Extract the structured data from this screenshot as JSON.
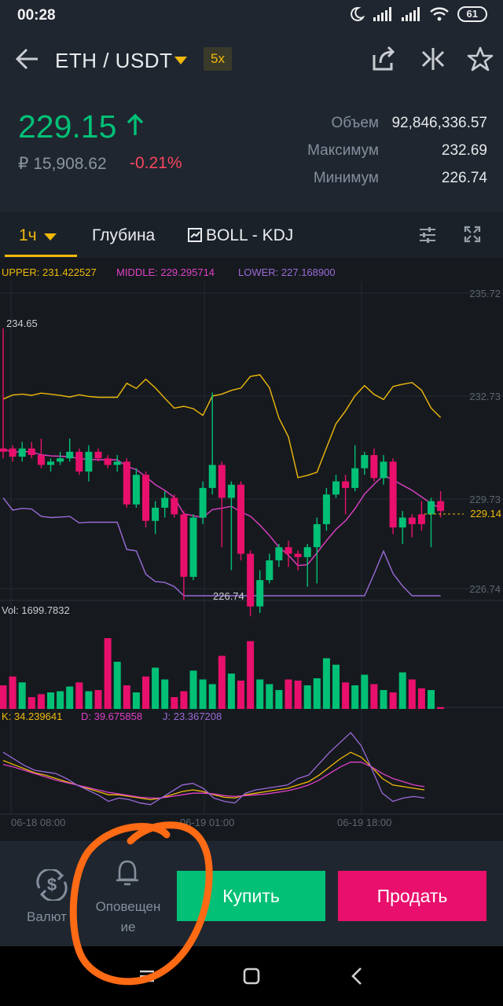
{
  "status": {
    "time": "00:28",
    "battery": "61"
  },
  "header": {
    "pair": "ETH / USDT",
    "leverage": "5x"
  },
  "ticker": {
    "price": "229.15",
    "fiat": "₽ 15,908.62",
    "change": "-0.21%",
    "stats": [
      {
        "label": "Объем",
        "value": "92,846,336.57"
      },
      {
        "label": "Максимум",
        "value": "232.69"
      },
      {
        "label": "Минимум",
        "value": "226.74"
      }
    ]
  },
  "toolbar": {
    "interval": "1ч",
    "depth": "Глубина",
    "indicators": "BOLL - KDJ"
  },
  "chart_data": {
    "type": "candlestick",
    "boll": {
      "upper": "UPPER: 231.422527",
      "middle": "MIDDLE: 229.295714",
      "lower": "LOWER: 227.168900"
    },
    "price_axis": [
      "235.72",
      "232.73",
      "229.73",
      "226.74"
    ],
    "current_price": "229.14",
    "high_label": "234.65",
    "low_label": "226.74",
    "volume_label": "Vol: 1699.7832",
    "kdj": {
      "k": "K: 34.239641",
      "d": "D: 39.675858",
      "j": "J: 23.367208"
    },
    "time_axis": [
      "06-18 08:00",
      "06-19 01:00",
      "06-19 18:00"
    ],
    "colors": {
      "up": "#02c076",
      "down": "#e8106c",
      "upper": "#f0b90b",
      "middle": "#e040c8",
      "lower": "#9b6ad8"
    },
    "candles": [
      [
        230.9,
        231.0,
        230.7,
        234.65,
        0
      ],
      [
        231.0,
        230.75,
        230.6,
        231.1,
        0
      ],
      [
        230.75,
        231.0,
        230.6,
        231.2,
        1
      ],
      [
        231.0,
        230.8,
        230.7,
        231.2,
        0
      ],
      [
        230.8,
        230.5,
        230.4,
        231.3,
        0
      ],
      [
        230.5,
        230.6,
        230.3,
        230.7,
        1
      ],
      [
        230.6,
        230.7,
        230.5,
        230.9,
        1
      ],
      [
        230.7,
        230.9,
        230.6,
        231.3,
        1
      ],
      [
        230.9,
        230.3,
        230.2,
        231.0,
        0
      ],
      [
        230.3,
        230.9,
        230.0,
        231.1,
        1
      ],
      [
        230.9,
        230.7,
        230.6,
        231.0,
        0
      ],
      [
        230.7,
        230.5,
        230.4,
        230.8,
        0
      ],
      [
        230.5,
        230.6,
        230.3,
        230.8,
        1
      ],
      [
        230.6,
        229.3,
        229.2,
        230.7,
        0
      ],
      [
        229.3,
        230.2,
        229.2,
        230.4,
        1
      ],
      [
        230.2,
        228.8,
        228.6,
        230.3,
        0
      ],
      [
        228.8,
        229.2,
        228.4,
        229.4,
        1
      ],
      [
        229.2,
        229.5,
        228.9,
        229.7,
        1
      ],
      [
        229.5,
        229.0,
        228.9,
        229.6,
        0
      ],
      [
        229.0,
        227.1,
        226.4,
        229.1,
        0
      ],
      [
        227.1,
        228.9,
        227.0,
        229.0,
        1
      ],
      [
        228.9,
        229.8,
        228.7,
        230.0,
        1
      ],
      [
        229.8,
        230.5,
        229.6,
        232.7,
        1
      ],
      [
        230.5,
        229.5,
        228.0,
        230.6,
        0
      ],
      [
        229.5,
        229.9,
        227.3,
        230.0,
        1
      ],
      [
        229.9,
        227.8,
        227.6,
        230.0,
        0
      ],
      [
        227.8,
        226.2,
        225.9,
        227.9,
        0
      ],
      [
        226.2,
        227.0,
        226.0,
        227.3,
        1
      ],
      [
        227.0,
        227.6,
        226.9,
        227.8,
        1
      ],
      [
        227.6,
        228.0,
        227.4,
        228.1,
        1
      ],
      [
        228.0,
        227.8,
        227.4,
        228.2,
        0
      ],
      [
        227.8,
        227.7,
        227.3,
        227.9,
        0
      ],
      [
        227.7,
        228.0,
        226.8,
        228.1,
        1
      ],
      [
        228.0,
        228.7,
        226.9,
        228.9,
        1
      ],
      [
        228.7,
        229.6,
        228.5,
        229.8,
        1
      ],
      [
        229.6,
        230.0,
        229.5,
        230.2,
        1
      ],
      [
        230.0,
        229.8,
        229.0,
        230.2,
        0
      ],
      [
        229.8,
        230.4,
        229.7,
        231.1,
        1
      ],
      [
        230.4,
        230.8,
        230.2,
        230.9,
        1
      ],
      [
        230.8,
        230.1,
        230.0,
        231.0,
        0
      ],
      [
        230.1,
        230.6,
        229.9,
        230.8,
        1
      ],
      [
        230.6,
        228.6,
        228.4,
        230.7,
        0
      ],
      [
        228.6,
        228.9,
        228.1,
        229.1,
        1
      ],
      [
        228.9,
        228.7,
        228.3,
        229.0,
        0
      ],
      [
        228.7,
        229.0,
        228.5,
        229.4,
        0
      ],
      [
        229.0,
        229.4,
        228.0,
        229.5,
        1
      ],
      [
        229.4,
        229.1,
        228.9,
        229.7,
        0
      ]
    ],
    "volume": [
      40,
      55,
      45,
      20,
      25,
      28,
      30,
      38,
      45,
      30,
      32,
      120,
      80,
      40,
      28,
      55,
      70,
      50,
      20,
      30,
      65,
      50,
      42,
      90,
      60,
      48,
      115,
      50,
      42,
      32,
      50,
      48,
      40,
      52,
      86,
      75,
      45,
      40,
      58,
      42,
      32,
      28,
      62,
      50,
      35,
      32,
      3
    ],
    "kdj_k": [
      60,
      55,
      50,
      45,
      42,
      38,
      34,
      30,
      26,
      22,
      18,
      18,
      16,
      14,
      12,
      14,
      18,
      22,
      24,
      22,
      18,
      15,
      14,
      18,
      20,
      22,
      24,
      26,
      30,
      34,
      42,
      52,
      62,
      70,
      64,
      52,
      38,
      30,
      28,
      26,
      24
    ],
    "kdj_d": [
      55,
      52,
      48,
      44,
      40,
      36,
      33,
      30,
      27,
      24,
      21,
      19,
      17,
      15,
      14,
      14,
      16,
      18,
      20,
      20,
      19,
      17,
      16,
      17,
      18,
      19,
      21,
      23,
      26,
      30,
      36,
      44,
      52,
      58,
      58,
      52,
      44,
      38,
      34,
      30,
      28
    ],
    "kdj_j": [
      70,
      62,
      54,
      48,
      46,
      44,
      38,
      30,
      24,
      18,
      10,
      14,
      12,
      8,
      6,
      14,
      22,
      30,
      32,
      26,
      14,
      10,
      8,
      20,
      24,
      26,
      28,
      30,
      38,
      42,
      56,
      70,
      82,
      94,
      78,
      50,
      20,
      10,
      14,
      16,
      14
    ]
  },
  "bottom": {
    "currency_label": "Валют",
    "alerts_label_1": "Оповещен",
    "alerts_label_2": "ие",
    "buy": "Купить",
    "sell": "Продать"
  }
}
